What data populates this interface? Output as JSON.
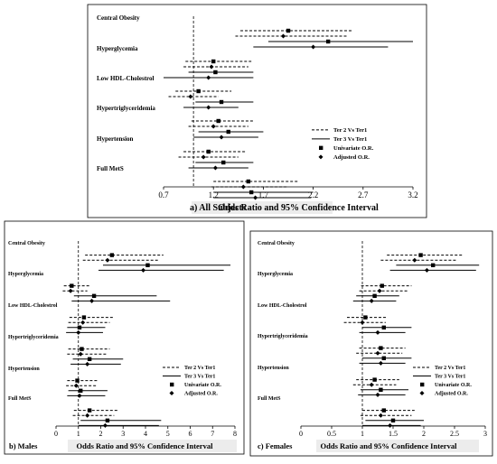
{
  "legend": {
    "ter2": "Ter 2 Vs Ter1",
    "ter3": "Ter 3 Vs Ter1",
    "univariate": "Univariate O.R.",
    "adjusted": "Adjusted O.R."
  },
  "reference_line_value": 1,
  "chart_data": [
    {
      "type": "forest",
      "panel_label": "a) All Subjects",
      "xlabel": "Odds Ratio and 95% Confidence Interval",
      "xlim": [
        0.7,
        3.2
      ],
      "xticks": [
        "0.7",
        "1.2",
        "1.7",
        "2.2",
        "2.7",
        "3.2"
      ],
      "categories": [
        "Central Obesity",
        "Hyperglycemia",
        "Low HDL-Cholestrol",
        "Hypertriglyceridemia",
        "Hypertension",
        "Full MetS"
      ],
      "rows": [
        [
          {
            "series": "Ter 2 Vs Ter1",
            "estimate": "Univariate O.R.",
            "or": 1.95,
            "low": 1.47,
            "high": 2.6
          },
          {
            "series": "Ter 2 Vs Ter1",
            "estimate": "Adjusted O.R.",
            "or": 1.9,
            "low": 1.42,
            "high": 2.55
          },
          {
            "series": "Ter 3 Vs Ter1",
            "estimate": "Univariate O.R.",
            "or": 2.35,
            "low": 1.75,
            "high": 3.2
          },
          {
            "series": "Ter 3 Vs Ter1",
            "estimate": "Adjusted O.R.",
            "or": 2.2,
            "low": 1.6,
            "high": 2.95
          }
        ],
        [
          {
            "series": "Ter 2 Vs Ter1",
            "estimate": "Univariate O.R.",
            "or": 1.2,
            "low": 0.92,
            "high": 1.58
          },
          {
            "series": "Ter 2 Vs Ter1",
            "estimate": "Adjusted O.R.",
            "or": 1.18,
            "low": 0.9,
            "high": 1.55
          },
          {
            "series": "Ter 3 Vs Ter1",
            "estimate": "Univariate O.R.",
            "or": 1.22,
            "low": 0.95,
            "high": 1.6
          },
          {
            "series": "Ter 3 Vs Ter1",
            "estimate": "Adjusted O.R.",
            "or": 1.15,
            "low": 0.7,
            "high": 1.6
          }
        ],
        [
          {
            "series": "Ter 2 Vs Ter1",
            "estimate": "Univariate O.R.",
            "or": 1.05,
            "low": 0.82,
            "high": 1.38
          },
          {
            "series": "Ter 2 Vs Ter1",
            "estimate": "Adjusted O.R.",
            "or": 0.97,
            "low": 0.75,
            "high": 1.25
          },
          {
            "series": "Ter 3 Vs Ter1",
            "estimate": "Univariate O.R.",
            "or": 1.28,
            "low": 1.02,
            "high": 1.6
          },
          {
            "series": "Ter 3 Vs Ter1",
            "estimate": "Adjusted O.R.",
            "or": 1.15,
            "low": 0.9,
            "high": 1.45
          }
        ],
        [
          {
            "series": "Ter 2 Vs Ter1",
            "estimate": "Univariate O.R.",
            "or": 1.25,
            "low": 0.98,
            "high": 1.6
          },
          {
            "series": "Ter 2 Vs Ter1",
            "estimate": "Adjusted O.R.",
            "or": 1.2,
            "low": 0.95,
            "high": 1.55
          },
          {
            "series": "Ter 3 Vs Ter1",
            "estimate": "Univariate O.R.",
            "or": 1.35,
            "low": 1.05,
            "high": 1.7
          },
          {
            "series": "Ter 3 Vs Ter1",
            "estimate": "Adjusted O.R.",
            "or": 1.28,
            "low": 1.0,
            "high": 1.65
          }
        ],
        [
          {
            "series": "Ter 2 Vs Ter1",
            "estimate": "Univariate O.R.",
            "or": 1.15,
            "low": 0.9,
            "high": 1.52
          },
          {
            "series": "Ter 2 Vs Ter1",
            "estimate": "Adjusted O.R.",
            "or": 1.1,
            "low": 0.85,
            "high": 1.45
          },
          {
            "series": "Ter 3 Vs Ter1",
            "estimate": "Univariate O.R.",
            "or": 1.3,
            "low": 1.02,
            "high": 1.6
          },
          {
            "series": "Ter 3 Vs Ter1",
            "estimate": "Adjusted O.R.",
            "or": 1.22,
            "low": 0.95,
            "high": 1.55
          }
        ],
        [
          {
            "series": "Ter 2 Vs Ter1",
            "estimate": "Univariate O.R.",
            "or": 1.55,
            "low": 1.2,
            "high": 2.05
          },
          {
            "series": "Ter 2 Vs Ter1",
            "estimate": "Adjusted O.R.",
            "or": 1.5,
            "low": 1.18,
            "high": 1.95
          },
          {
            "series": "Ter 3 Vs Ter1",
            "estimate": "Univariate O.R.",
            "or": 1.58,
            "low": 1.2,
            "high": 2.2
          },
          {
            "series": "Ter 3 Vs Ter1",
            "estimate": "Adjusted O.R.",
            "or": 1.62,
            "low": 1.2,
            "high": 2.18
          }
        ]
      ]
    },
    {
      "type": "forest",
      "panel_label": "b) Males",
      "xlabel": "Odds Ratio and 95% Confidence Interval",
      "xlim": [
        0,
        8
      ],
      "xticks": [
        "0",
        "1",
        "2",
        "3",
        "4",
        "5",
        "6",
        "7",
        "8"
      ],
      "categories": [
        "Central Obesity",
        "Hyperglycemia",
        "Low HDL-Cholestrol",
        "Hypertriglyceridemia",
        "Hypertension",
        "Full MetS"
      ],
      "rows": [
        [
          {
            "series": "Ter 2 Vs Ter1",
            "estimate": "Univariate O.R.",
            "or": 2.5,
            "low": 1.3,
            "high": 4.8
          },
          {
            "series": "Ter 2 Vs Ter1",
            "estimate": "Adjusted O.R.",
            "or": 2.3,
            "low": 1.2,
            "high": 4.6
          },
          {
            "series": "Ter 3 Vs Ter1",
            "estimate": "Univariate O.R.",
            "or": 4.1,
            "low": 2.1,
            "high": 7.8
          },
          {
            "series": "Ter 3 Vs Ter1",
            "estimate": "Adjusted O.R.",
            "or": 3.9,
            "low": 1.9,
            "high": 7.5
          }
        ],
        [
          {
            "series": "Ter 2 Vs Ter1",
            "estimate": "Univariate O.R.",
            "or": 0.7,
            "low": 0.35,
            "high": 1.5
          },
          {
            "series": "Ter 2 Vs Ter1",
            "estimate": "Adjusted O.R.",
            "or": 0.65,
            "low": 0.3,
            "high": 1.4
          },
          {
            "series": "Ter 3 Vs Ter1",
            "estimate": "Univariate O.R.",
            "or": 1.7,
            "low": 0.8,
            "high": 4.5
          },
          {
            "series": "Ter 3 Vs Ter1",
            "estimate": "Adjusted O.R.",
            "or": 1.6,
            "low": 0.7,
            "high": 5.1
          }
        ],
        [
          {
            "series": "Ter 2 Vs Ter1",
            "estimate": "Univariate O.R.",
            "or": 1.25,
            "low": 0.6,
            "high": 2.6
          },
          {
            "series": "Ter 2 Vs Ter1",
            "estimate": "Adjusted O.R.",
            "or": 1.2,
            "low": 0.55,
            "high": 2.4
          },
          {
            "series": "Ter 3 Vs Ter1",
            "estimate": "Univariate O.R.",
            "or": 1.05,
            "low": 0.5,
            "high": 2.2
          },
          {
            "series": "Ter 3 Vs Ter1",
            "estimate": "Adjusted O.R.",
            "or": 1.0,
            "low": 0.45,
            "high": 2.1
          }
        ],
        [
          {
            "series": "Ter 2 Vs Ter1",
            "estimate": "Univariate O.R.",
            "or": 1.15,
            "low": 0.55,
            "high": 2.4
          },
          {
            "series": "Ter 2 Vs Ter1",
            "estimate": "Adjusted O.R.",
            "or": 1.1,
            "low": 0.5,
            "high": 2.3
          },
          {
            "series": "Ter 3 Vs Ter1",
            "estimate": "Univariate O.R.",
            "or": 1.5,
            "low": 0.75,
            "high": 3.0
          },
          {
            "series": "Ter 3 Vs Ter1",
            "estimate": "Adjusted O.R.",
            "or": 1.4,
            "low": 0.65,
            "high": 2.9
          }
        ],
        [
          {
            "series": "Ter 2 Vs Ter1",
            "estimate": "Univariate O.R.",
            "or": 0.95,
            "low": 0.5,
            "high": 1.9
          },
          {
            "series": "Ter 2 Vs Ter1",
            "estimate": "Adjusted O.R.",
            "or": 0.9,
            "low": 0.45,
            "high": 1.8
          },
          {
            "series": "Ter 3 Vs Ter1",
            "estimate": "Univariate O.R.",
            "or": 1.1,
            "low": 0.55,
            "high": 2.3
          },
          {
            "series": "Ter 3 Vs Ter1",
            "estimate": "Adjusted O.R.",
            "or": 1.05,
            "low": 0.5,
            "high": 2.2
          }
        ],
        [
          {
            "series": "Ter 2 Vs Ter1",
            "estimate": "Univariate O.R.",
            "or": 1.5,
            "low": 0.8,
            "high": 2.8
          },
          {
            "series": "Ter 2 Vs Ter1",
            "estimate": "Adjusted O.R.",
            "or": 1.4,
            "low": 0.75,
            "high": 2.6
          },
          {
            "series": "Ter 3 Vs Ter1",
            "estimate": "Univariate O.R.",
            "or": 2.3,
            "low": 1.1,
            "high": 4.7
          },
          {
            "series": "Ter 3 Vs Ter1",
            "estimate": "Adjusted O.R.",
            "or": 2.2,
            "low": 1.0,
            "high": 4.6
          }
        ]
      ]
    },
    {
      "type": "forest",
      "panel_label": "c) Females",
      "xlabel": "Odds Ratio and 95% Confidence Interval",
      "xlim": [
        0,
        3
      ],
      "xticks": [
        "0",
        "0.5",
        "1",
        "1.5",
        "2",
        "2.5",
        "3"
      ],
      "categories": [
        "Central Obesity",
        "Hyperglycemia",
        "Low HDL-Cholestrol",
        "Hypertriglyceridemia",
        "Hypertension",
        "Full MetS"
      ],
      "rows": [
        [
          {
            "series": "Ter 2 Vs Ter1",
            "estimate": "Univariate O.R.",
            "or": 1.95,
            "low": 1.4,
            "high": 2.65
          },
          {
            "series": "Ter 2 Vs Ter1",
            "estimate": "Adjusted O.R.",
            "or": 1.85,
            "low": 1.3,
            "high": 2.55
          },
          {
            "series": "Ter 3 Vs Ter1",
            "estimate": "Univariate O.R.",
            "or": 2.15,
            "low": 1.55,
            "high": 2.9
          },
          {
            "series": "Ter 3 Vs Ter1",
            "estimate": "Adjusted O.R.",
            "or": 2.05,
            "low": 1.45,
            "high": 2.85
          }
        ],
        [
          {
            "series": "Ter 2 Vs Ter1",
            "estimate": "Univariate O.R.",
            "or": 1.32,
            "low": 0.98,
            "high": 1.8
          },
          {
            "series": "Ter 2 Vs Ter1",
            "estimate": "Adjusted O.R.",
            "or": 1.28,
            "low": 0.95,
            "high": 1.75
          },
          {
            "series": "Ter 3 Vs Ter1",
            "estimate": "Univariate O.R.",
            "or": 1.2,
            "low": 0.9,
            "high": 1.6
          },
          {
            "series": "Ter 3 Vs Ter1",
            "estimate": "Adjusted O.R.",
            "or": 1.15,
            "low": 0.85,
            "high": 1.55
          }
        ],
        [
          {
            "series": "Ter 2 Vs Ter1",
            "estimate": "Univariate O.R.",
            "or": 1.05,
            "low": 0.75,
            "high": 1.4
          },
          {
            "series": "Ter 2 Vs Ter1",
            "estimate": "Adjusted O.R.",
            "or": 1.0,
            "low": 0.7,
            "high": 1.38
          },
          {
            "series": "Ter 3 Vs Ter1",
            "estimate": "Univariate O.R.",
            "or": 1.35,
            "low": 1.0,
            "high": 1.8
          },
          {
            "series": "Ter 3 Vs Ter1",
            "estimate": "Adjusted O.R.",
            "or": 1.25,
            "low": 0.95,
            "high": 1.7
          }
        ],
        [
          {
            "series": "Ter 2 Vs Ter1",
            "estimate": "Univariate O.R.",
            "or": 1.3,
            "low": 0.95,
            "high": 1.7
          },
          {
            "series": "Ter 2 Vs Ter1",
            "estimate": "Adjusted O.R.",
            "or": 1.25,
            "low": 0.9,
            "high": 1.65
          },
          {
            "series": "Ter 3 Vs Ter1",
            "estimate": "Univariate O.R.",
            "or": 1.35,
            "low": 1.0,
            "high": 1.8
          },
          {
            "series": "Ter 3 Vs Ter1",
            "estimate": "Adjusted O.R.",
            "or": 1.3,
            "low": 0.95,
            "high": 1.7
          }
        ],
        [
          {
            "series": "Ter 2 Vs Ter1",
            "estimate": "Univariate O.R.",
            "or": 1.2,
            "low": 0.9,
            "high": 1.6
          },
          {
            "series": "Ter 2 Vs Ter1",
            "estimate": "Adjusted O.R.",
            "or": 1.15,
            "low": 0.85,
            "high": 1.55
          },
          {
            "series": "Ter 3 Vs Ter1",
            "estimate": "Univariate O.R.",
            "or": 1.3,
            "low": 0.97,
            "high": 1.75
          },
          {
            "series": "Ter 3 Vs Ter1",
            "estimate": "Adjusted O.R.",
            "or": 1.25,
            "low": 0.93,
            "high": 1.7
          }
        ],
        [
          {
            "series": "Ter 2 Vs Ter1",
            "estimate": "Univariate O.R.",
            "or": 1.35,
            "low": 1.0,
            "high": 1.85
          },
          {
            "series": "Ter 2 Vs Ter1",
            "estimate": "Adjusted O.R.",
            "or": 1.3,
            "low": 0.97,
            "high": 1.8
          },
          {
            "series": "Ter 3 Vs Ter1",
            "estimate": "Univariate O.R.",
            "or": 1.5,
            "low": 1.05,
            "high": 2.0
          },
          {
            "series": "Ter 3 Vs Ter1",
            "estimate": "Adjusted O.R.",
            "or": 1.45,
            "low": 1.0,
            "high": 1.95
          }
        ]
      ]
    }
  ]
}
